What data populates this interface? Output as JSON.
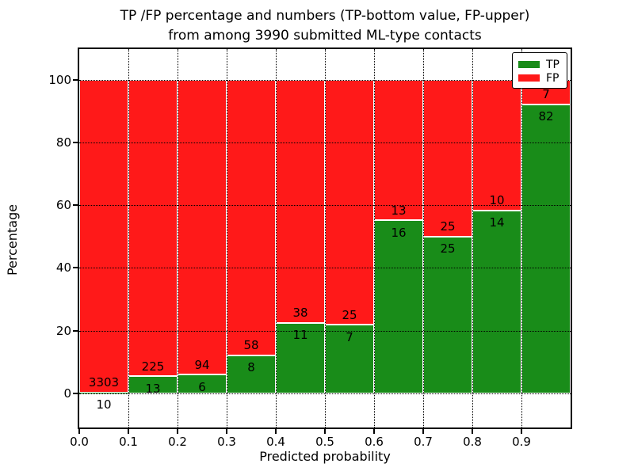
{
  "figure": {
    "title_line1": "TP /FP percentage and numbers (TP-bottom value, FP-upper)",
    "title_line2": "from among 3990 submitted ML-type contacts",
    "xlabel": "Predicted probability",
    "ylabel": "Percentage"
  },
  "legend": [
    {
      "label": "TP",
      "color": "#198c19"
    },
    {
      "label": "FP",
      "color": "#ff1919"
    }
  ],
  "chart_data": {
    "type": "bar",
    "stacked": true,
    "normalized_to_percent": 100,
    "title": "TP /FP percentage and numbers (TP-bottom value, FP-upper) from among 3990 submitted ML-type contacts",
    "xlabel": "Predicted probability",
    "ylabel": "Percentage",
    "total_contacts": 3990,
    "colors": {
      "tp": "#198c19",
      "fp": "#ff1919",
      "grid": "#000000",
      "background": "#ffffff"
    },
    "xlim": [
      0.0,
      1.0
    ],
    "ylim": [
      -11,
      110
    ],
    "grid": "dotted, both axes, drawn over bars",
    "legend_position": "upper right",
    "x_ticks": [
      "0.0",
      "0.1",
      "0.2",
      "0.3",
      "0.4",
      "0.5",
      "0.6",
      "0.7",
      "0.8",
      "0.9"
    ],
    "y_ticks": [
      0,
      20,
      40,
      60,
      80,
      100
    ],
    "bins": [
      {
        "range": [
          0.0,
          0.1
        ],
        "tp": 10,
        "fp": 3303,
        "tp_pct": 0.3
      },
      {
        "range": [
          0.1,
          0.2
        ],
        "tp": 13,
        "fp": 225,
        "tp_pct": 5.46
      },
      {
        "range": [
          0.2,
          0.3
        ],
        "tp": 6,
        "fp": 94,
        "tp_pct": 6.0
      },
      {
        "range": [
          0.3,
          0.4
        ],
        "tp": 8,
        "fp": 58,
        "tp_pct": 12.12
      },
      {
        "range": [
          0.4,
          0.5
        ],
        "tp": 11,
        "fp": 38,
        "tp_pct": 22.45
      },
      {
        "range": [
          0.5,
          0.6
        ],
        "tp": 7,
        "fp": 25,
        "tp_pct": 21.88
      },
      {
        "range": [
          0.6,
          0.7
        ],
        "tp": 16,
        "fp": 13,
        "tp_pct": 55.17
      },
      {
        "range": [
          0.7,
          0.8
        ],
        "tp": 25,
        "fp": 25,
        "tp_pct": 50.0
      },
      {
        "range": [
          0.8,
          0.9
        ],
        "tp": 14,
        "fp": 10,
        "tp_pct": 58.33
      },
      {
        "range": [
          0.9,
          1.0
        ],
        "tp": 82,
        "fp": 7,
        "tp_pct": 92.13
      }
    ],
    "series": [
      {
        "name": "TP",
        "color": "#198c19",
        "counts": [
          10,
          13,
          6,
          8,
          11,
          7,
          16,
          25,
          14,
          82
        ]
      },
      {
        "name": "FP",
        "color": "#ff1919",
        "counts": [
          3303,
          225,
          94,
          58,
          38,
          25,
          13,
          25,
          10,
          7
        ]
      }
    ]
  }
}
